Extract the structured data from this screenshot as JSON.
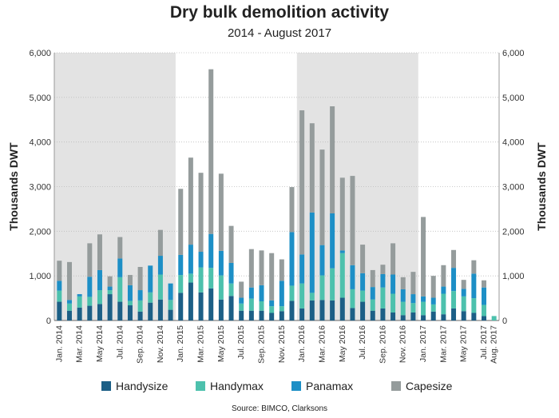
{
  "chart_data": {
    "type": "bar",
    "stacked": true,
    "title": "Dry bulk demolition activity",
    "subtitle": "2014 - August 2017",
    "ylabel": "Thousands DWT",
    "ylim": [
      0,
      6000
    ],
    "yticks": [
      "0",
      "1,000",
      "2,000",
      "3,000",
      "4,000",
      "5,000",
      "6,000"
    ],
    "grid": true,
    "legend_position": "bottom",
    "source": "Source: BIMCO, Clarksons",
    "categories": [
      "Jan. 2014",
      "Feb. 2014",
      "Mar. 2014",
      "Apr. 2014",
      "May 2014",
      "Jun. 2014",
      "Jul. 2014",
      "Aug. 2014",
      "Sep. 2014",
      "Oct. 2014",
      "Nov. 2014",
      "Dec. 2014",
      "Jan. 2015",
      "Feb. 2015",
      "Mar. 2015",
      "Apr. 2015",
      "May 2015",
      "Jun. 2015",
      "Jul. 2015",
      "Aug. 2015",
      "Sep. 2015",
      "Oct. 2015",
      "Nov. 2015",
      "Dec. 2015",
      "Jan. 2016",
      "Feb. 2016",
      "Mar. 2016",
      "Apr. 2016",
      "May 2016",
      "Jun. 2016",
      "Jul. 2016",
      "Aug. 2016",
      "Sep. 2016",
      "Oct. 2016",
      "Nov. 2016",
      "Dec. 2016",
      "Jan. 2017",
      "Feb. 2017",
      "Mar. 2017",
      "Apr. 2017",
      "May 2017",
      "Jun. 2017",
      "Jul. 2017",
      "Aug. 2017"
    ],
    "x_tick_labels": [
      "Jan. 2014",
      "",
      "Mar. 2014",
      "",
      "May 2014",
      "",
      "Jul. 2014",
      "",
      "Sep. 2014",
      "",
      "Nov. 2014",
      "",
      "Jan. 2015",
      "",
      "Mar. 2015",
      "",
      "May 2015",
      "",
      "Jul. 2015",
      "",
      "Sep. 2015",
      "",
      "Nov. 2015",
      "",
      "Jan. 2016",
      "",
      "Mar. 2016",
      "",
      "May 2016",
      "",
      "Jul. 2016",
      "",
      "Sep. 2016",
      "",
      "Nov. 2016",
      "",
      "Jan. 2017",
      "",
      "Mar. 2017",
      "",
      "May 2017",
      "",
      "Jul. 2017",
      "Aug. 2017"
    ],
    "shaded_ranges": [
      [
        0,
        11
      ],
      [
        24,
        35
      ]
    ],
    "series": [
      {
        "name": "Handysize",
        "color": "#1c5f86",
        "values": [
          420,
          220,
          290,
          330,
          370,
          590,
          420,
          340,
          200,
          400,
          470,
          240,
          620,
          850,
          630,
          720,
          470,
          550,
          220,
          220,
          220,
          170,
          210,
          440,
          270,
          450,
          460,
          450,
          510,
          280,
          420,
          220,
          270,
          180,
          120,
          180,
          120,
          200,
          140,
          270,
          210,
          170,
          100,
          0
        ]
      },
      {
        "name": "Handymax",
        "color": "#4dc1ad",
        "values": [
          250,
          160,
          250,
          200,
          310,
          90,
          550,
          100,
          250,
          230,
          560,
          220,
          400,
          200,
          560,
          460,
          540,
          280,
          160,
          270,
          210,
          150,
          110,
          340,
          560,
          170,
          550,
          720,
          1000,
          420,
          250,
          250,
          470,
          420,
          300,
          210,
          300,
          160,
          460,
          390,
          330,
          330,
          250,
          100
        ]
      },
      {
        "name": "Panamax",
        "color": "#1d8fc6",
        "values": [
          220,
          80,
          50,
          450,
          450,
          80,
          420,
          350,
          230,
          600,
          420,
          370,
          450,
          650,
          350,
          760,
          550,
          460,
          130,
          250,
          360,
          130,
          570,
          1200,
          650,
          1800,
          680,
          1230,
          60,
          540,
          390,
          280,
          300,
          430,
          280,
          200,
          120,
          150,
          160,
          520,
          170,
          550,
          390,
          0
        ]
      },
      {
        "name": "Capesize",
        "color": "#959c9c",
        "values": [
          450,
          850,
          0,
          750,
          800,
          230,
          480,
          230,
          520,
          0,
          580,
          0,
          1480,
          1950,
          1770,
          3690,
          1730,
          830,
          360,
          860,
          780,
          1060,
          480,
          1010,
          3230,
          2000,
          2140,
          2400,
          1630,
          2000,
          640,
          380,
          210,
          700,
          270,
          500,
          1780,
          490,
          480,
          400,
          200,
          300,
          160,
          0
        ]
      }
    ]
  }
}
